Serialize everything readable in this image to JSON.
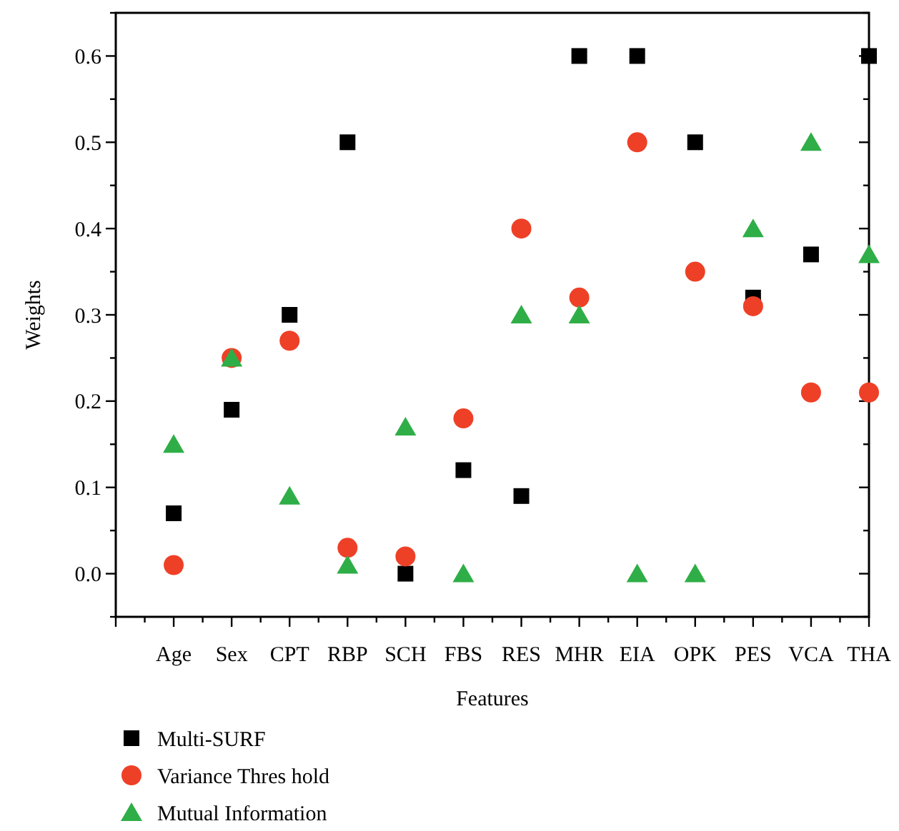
{
  "chart_data": {
    "type": "scatter",
    "xlabel": "Features",
    "ylabel": "Weights",
    "categories": [
      "Age",
      "Sex",
      "CPT",
      "RBP",
      "SCH",
      "FBS",
      "RES",
      "MHR",
      "EIA",
      "OPK",
      "PES",
      "VCA",
      "THA"
    ],
    "series": [
      {
        "name": "Multi-SURF",
        "color": "#000000",
        "marker": "square",
        "values": [
          0.07,
          0.19,
          0.3,
          0.5,
          0.0,
          0.12,
          0.09,
          0.6,
          0.6,
          0.5,
          0.32,
          0.37,
          0.6
        ]
      },
      {
        "name": "Variance Thres hold",
        "color": "#ee4027",
        "marker": "circle",
        "values": [
          0.01,
          0.25,
          0.27,
          0.03,
          0.02,
          0.18,
          0.4,
          0.32,
          0.5,
          0.35,
          0.31,
          0.21,
          0.21
        ]
      },
      {
        "name": "Mutual Information",
        "color": "#2fae47",
        "marker": "triangle",
        "values": [
          0.15,
          0.25,
          0.09,
          0.01,
          0.17,
          0.0,
          0.3,
          0.3,
          0.0,
          0.0,
          0.4,
          0.5,
          0.37
        ]
      }
    ],
    "ylim": [
      -0.05,
      0.65
    ],
    "yticks": [
      {
        "value": -0.05,
        "label": null
      },
      {
        "value": 0,
        "label": "0.0"
      },
      {
        "value": 0.05,
        "label": null
      },
      0.1,
      {
        "value": 0.15,
        "label": null
      },
      0.2,
      {
        "value": 0.25,
        "label": null
      },
      0.3,
      {
        "value": 0.35,
        "label": null
      },
      0.4,
      {
        "value": 0.45,
        "label": null
      },
      0.5,
      {
        "value": 0.55,
        "label": null
      },
      0.6,
      {
        "value": 0.65,
        "label": null
      }
    ],
    "grid": false,
    "legend": "bottom left"
  }
}
